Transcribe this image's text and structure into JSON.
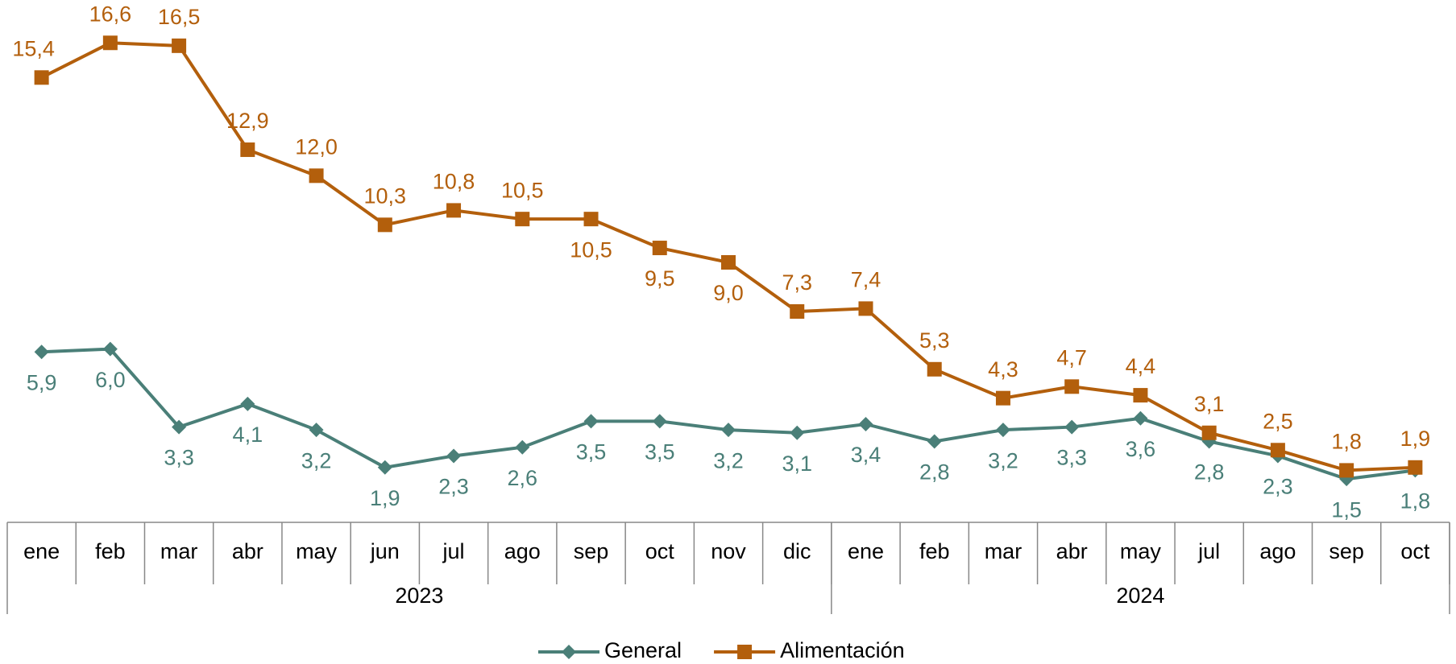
{
  "chart_data": {
    "type": "line",
    "categories": [
      "ene",
      "feb",
      "mar",
      "abr",
      "may",
      "jun",
      "jul",
      "ago",
      "sep",
      "oct",
      "nov",
      "dic",
      "ene",
      "feb",
      "mar",
      "abr",
      "may",
      "jul",
      "ago",
      "sep",
      "oct"
    ],
    "x_groups": [
      {
        "label": "2023",
        "count": 12
      },
      {
        "label": "2024",
        "count": 9
      }
    ],
    "ylim": [
      0,
      18
    ],
    "legend": "bottom",
    "series": [
      {
        "name": "General",
        "color": "#4a7f78",
        "marker": "diamond",
        "values": [
          5.9,
          6.0,
          3.3,
          4.1,
          3.2,
          1.9,
          2.3,
          2.6,
          3.5,
          3.5,
          3.2,
          3.1,
          3.4,
          2.8,
          3.2,
          3.3,
          3.6,
          2.8,
          2.3,
          1.5,
          1.8
        ],
        "value_labels": [
          "5,9",
          "6,0",
          "3,3",
          "4,1",
          "3,2",
          "1,9",
          "2,3",
          "2,6",
          "3,5",
          "3,5",
          "3,2",
          "3,1",
          "3,4",
          "2,8",
          "3,2",
          "3,3",
          "3,6",
          "2,8",
          "2,3",
          "1,5",
          "1,8"
        ]
      },
      {
        "name": "Alimentación",
        "color": "#b35f0c",
        "marker": "square",
        "values": [
          15.4,
          16.6,
          16.5,
          12.9,
          12.0,
          10.3,
          10.8,
          10.5,
          10.5,
          9.5,
          9.0,
          7.3,
          7.4,
          5.3,
          4.3,
          4.7,
          4.4,
          3.1,
          2.5,
          1.8,
          1.9
        ],
        "value_labels": [
          "15,4",
          "16,6",
          "16,5",
          "12,9",
          "12,0",
          "10,3",
          "10,8",
          "10,5",
          "10,5",
          "9,5",
          "9,0",
          "7,3",
          "7,4",
          "5,3",
          "4,3",
          "4,7",
          "4,4",
          "3,1",
          "2,5",
          "1,8",
          "1,9"
        ]
      }
    ]
  }
}
